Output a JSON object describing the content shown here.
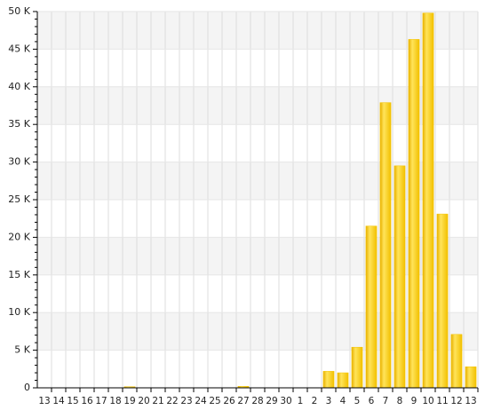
{
  "chart_data": {
    "type": "bar",
    "categories": [
      "13",
      "14",
      "15",
      "16",
      "17",
      "18",
      "19",
      "20",
      "21",
      "22",
      "23",
      "24",
      "25",
      "26",
      "27",
      "28",
      "29",
      "30",
      "1",
      "2",
      "3",
      "4",
      "5",
      "6",
      "7",
      "8",
      "9",
      "10",
      "11",
      "12",
      "13"
    ],
    "values": [
      0,
      0,
      0,
      0,
      0,
      0,
      150,
      0,
      0,
      0,
      0,
      0,
      0,
      0,
      200,
      0,
      0,
      0,
      0,
      0,
      2200,
      2000,
      5400,
      21500,
      37900,
      29500,
      46300,
      49800,
      23100,
      7100,
      2800
    ],
    "color": "#f5c400",
    "ylim": [
      0,
      50000
    ],
    "yticks": [
      0,
      {
        "value": 5000,
        "label": "5 K"
      },
      {
        "value": 10000,
        "label": "10 K"
      },
      {
        "value": 15000,
        "label": "15 K"
      },
      {
        "value": 20000,
        "label": "20 K"
      },
      {
        "value": 25000,
        "label": "25 K"
      },
      {
        "value": 30000,
        "label": "30 K"
      },
      {
        "value": 35000,
        "label": "35 K"
      },
      {
        "value": 40000,
        "label": "40 K"
      },
      {
        "value": 45000,
        "label": "45 K"
      },
      {
        "value": 50000,
        "label": "50 K"
      }
    ],
    "grid": true
  }
}
